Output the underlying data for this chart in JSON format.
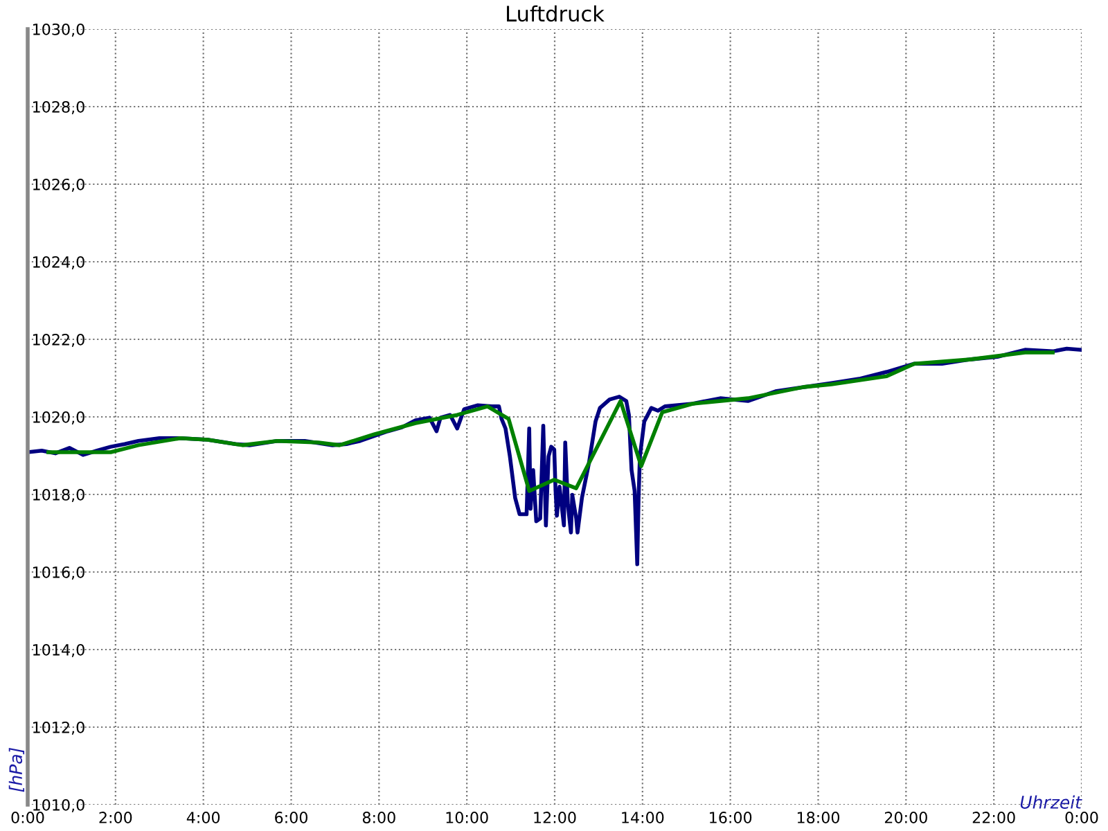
{
  "chart_data": {
    "type": "line",
    "title": "Luftdruck",
    "xlabel": "Uhrzeit",
    "ylabel": "[hPa]",
    "xlim": [
      0,
      24
    ],
    "xticks": [
      {
        "value": 0,
        "label": "0:00"
      },
      {
        "value": 2,
        "label": "2:00"
      },
      {
        "value": 4,
        "label": "4:00"
      },
      {
        "value": 6,
        "label": "6:00"
      },
      {
        "value": 8,
        "label": "8:00"
      },
      {
        "value": 10,
        "label": "10:00"
      },
      {
        "value": 12,
        "label": "12:00"
      },
      {
        "value": 14,
        "label": "14:00"
      },
      {
        "value": 16,
        "label": "16:00"
      },
      {
        "value": 18,
        "label": "18:00"
      },
      {
        "value": 20,
        "label": "20:00"
      },
      {
        "value": 22,
        "label": "22:00"
      },
      {
        "value": 24,
        "label": "0:00"
      }
    ],
    "ylim": [
      1010,
      1030
    ],
    "yticks": [
      {
        "value": 1010,
        "label": "1010,0"
      },
      {
        "value": 1012,
        "label": "1012,0"
      },
      {
        "value": 1014,
        "label": "1014,0"
      },
      {
        "value": 1016,
        "label": "1016,0"
      },
      {
        "value": 1018,
        "label": "1018,0"
      },
      {
        "value": 1020,
        "label": "1020,0"
      },
      {
        "value": 1022,
        "label": "1022,0"
      },
      {
        "value": 1024,
        "label": "1024,0"
      },
      {
        "value": 1026,
        "label": "1026,0"
      },
      {
        "value": 1028,
        "label": "1028,0"
      },
      {
        "value": 1030,
        "label": "1030,0"
      }
    ],
    "grid": true,
    "line_style": "solid",
    "marker": "none",
    "series": [
      {
        "color": "#000080",
        "x": [
          0,
          0.32,
          0.63,
          0.95,
          1.26,
          1.58,
          1.89,
          2.21,
          2.52,
          3.0,
          3.47,
          4.1,
          4.73,
          5.05,
          5.68,
          6.31,
          6.94,
          7.26,
          7.57,
          8.2,
          8.52,
          8.83,
          9.15,
          9.31,
          9.4,
          9.62,
          9.78,
          9.94,
          10.25,
          10.57,
          10.73,
          10.79,
          10.88,
          10.98,
          11.1,
          11.2,
          11.36,
          11.42,
          11.45,
          11.51,
          11.58,
          11.67,
          11.74,
          11.8,
          11.86,
          11.92,
          11.99,
          12.02,
          12.05,
          12.11,
          12.21,
          12.24,
          12.3,
          12.37,
          12.4,
          12.49,
          12.52,
          12.62,
          12.78,
          12.93,
          13.03,
          13.25,
          13.47,
          13.63,
          13.69,
          13.75,
          13.82,
          13.88,
          13.91,
          13.94,
          14.04,
          14.2,
          14.35,
          14.51,
          15.14,
          15.77,
          16.4,
          17.03,
          17.67,
          18.3,
          18.93,
          19.56,
          20.19,
          20.82,
          21.45,
          22.08,
          22.71,
          23.34,
          23.66,
          23.97
        ],
        "values": [
          1019.09,
          1019.13,
          1019.06,
          1019.2,
          1019.02,
          1019.13,
          1019.23,
          1019.3,
          1019.38,
          1019.45,
          1019.45,
          1019.41,
          1019.3,
          1019.27,
          1019.38,
          1019.38,
          1019.27,
          1019.3,
          1019.38,
          1019.63,
          1019.73,
          1019.91,
          1019.98,
          1019.63,
          1019.98,
          1020.05,
          1019.7,
          1020.2,
          1020.3,
          1020.27,
          1020.27,
          1019.95,
          1019.7,
          1018.98,
          1017.91,
          1017.49,
          1017.49,
          1019.7,
          1017.63,
          1018.63,
          1017.31,
          1017.38,
          1019.77,
          1017.2,
          1018.98,
          1019.23,
          1019.16,
          1018.09,
          1017.45,
          1018.2,
          1017.2,
          1019.34,
          1017.74,
          1017.02,
          1017.99,
          1017.38,
          1017.02,
          1017.91,
          1018.81,
          1019.88,
          1020.23,
          1020.45,
          1020.52,
          1020.41,
          1020.05,
          1018.63,
          1018.09,
          1016.2,
          1017.91,
          1018.98,
          1019.88,
          1020.23,
          1020.16,
          1020.27,
          1020.34,
          1020.48,
          1020.41,
          1020.66,
          1020.77,
          1020.87,
          1020.98,
          1021.16,
          1021.37,
          1021.37,
          1021.48,
          1021.55,
          1021.73,
          1021.69,
          1021.76,
          1021.73
        ]
      },
      {
        "color": "#008000",
        "x": [
          0.47,
          1.89,
          2.52,
          3.47,
          4.1,
          4.89,
          5.68,
          6.62,
          7.1,
          7.89,
          8.83,
          9.78,
          10.47,
          10.95,
          11.42,
          11.99,
          12.49,
          13.5,
          13.97,
          14.45,
          15.14,
          16.4,
          17.67,
          18.3,
          19.56,
          20.19,
          21.45,
          22.71,
          23.34
        ],
        "values": [
          1019.09,
          1019.09,
          1019.27,
          1019.45,
          1019.41,
          1019.27,
          1019.38,
          1019.34,
          1019.27,
          1019.55,
          1019.84,
          1020.05,
          1020.27,
          1019.95,
          1018.09,
          1018.38,
          1018.16,
          1020.41,
          1018.73,
          1020.12,
          1020.34,
          1020.48,
          1020.77,
          1020.84,
          1021.05,
          1021.37,
          1021.48,
          1021.66,
          1021.66
        ]
      }
    ]
  }
}
